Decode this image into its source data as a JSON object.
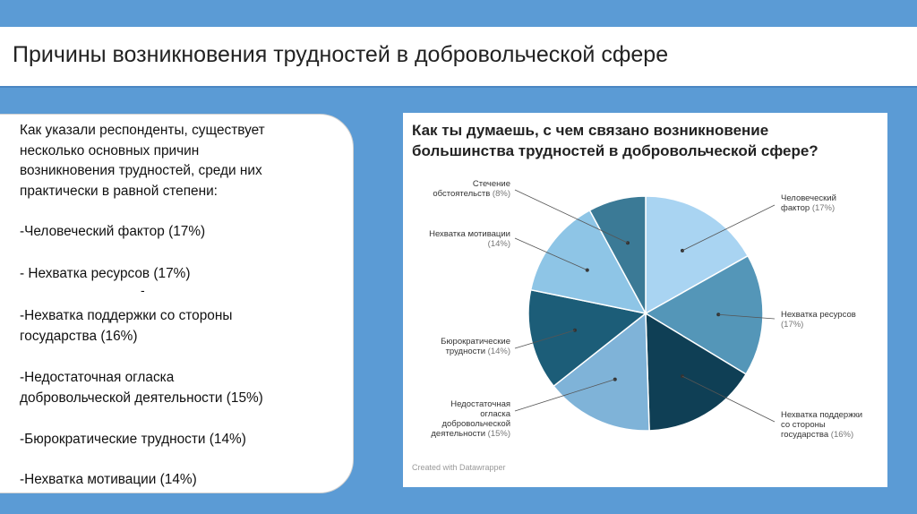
{
  "slide": {
    "title": "Причины возникновения трудностей в добровольческой сфере"
  },
  "text_panel": {
    "intro": [
      "Как указали респонденты, существует",
      "несколько основных причин",
      "возникновения трудностей, среди них",
      "практически в равной степени:"
    ],
    "factors": [
      [
        "-Человеческий фактор (17%)"
      ],
      [
        "- Нехватка ресурсов (17%)"
      ],
      [
        "-Нехватка поддержки со стороны",
        "государства (16%)"
      ],
      [
        "-Недостаточная огласка",
        "добровольческой деятельности (15%)"
      ],
      [
        "-Бюрократические трудности (14%)"
      ],
      [
        "-Нехватка мотивации (14%)"
      ]
    ],
    "stray_mark": "-"
  },
  "chart_data": {
    "type": "pie",
    "title": "Как ты думаешь, с чем связано возникновение\nбольшинства трудностей в добровольческой сфере?",
    "credit": "Created with Datawrapper",
    "slices": [
      {
        "name": [
          "Человеческий",
          "фактор"
        ],
        "value": 17,
        "label": "(17%)",
        "color": "#a9d4f2"
      },
      {
        "name": [
          "Нехватка ресурсов"
        ],
        "value": 17,
        "label": "(17%)",
        "color": "#5496b8"
      },
      {
        "name": [
          "Нехватка поддержки",
          "со стороны",
          "государства"
        ],
        "value": 16,
        "label": "(16%)",
        "color": "#0f3f55"
      },
      {
        "name": [
          "Недостаточная",
          "огласка",
          "добровольческой",
          "деятельности"
        ],
        "value": 15,
        "label": "(15%)",
        "color": "#7fb3d8"
      },
      {
        "name": [
          "Бюрократические",
          "трудности"
        ],
        "value": 14,
        "label": "(14%)",
        "color": "#1c5d78"
      },
      {
        "name": [
          "Нехватка мотивации"
        ],
        "value": 14,
        "label": "(14%)",
        "color": "#8ec5e6"
      },
      {
        "name": [
          "Стечение",
          "обстоятельств"
        ],
        "value": 8,
        "label": "(8%)",
        "color": "#3b7a96"
      }
    ]
  }
}
